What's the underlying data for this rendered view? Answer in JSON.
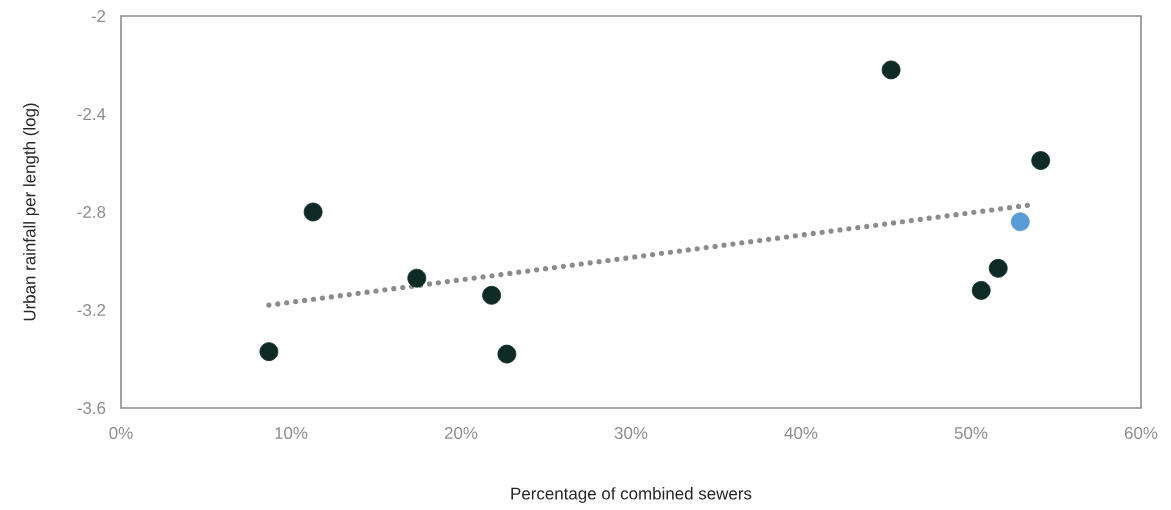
{
  "chart_data": {
    "type": "scatter",
    "xlabel": "Percentage of combined sewers",
    "ylabel": "Urban rainfall per length (log)",
    "marker": "circle",
    "xlim": [
      0,
      60
    ],
    "xticks": [
      {
        "value": 0,
        "label": "0%"
      },
      {
        "value": 10,
        "label": "10%"
      },
      {
        "value": 20,
        "label": "20%"
      },
      {
        "value": 30,
        "label": "30%"
      },
      {
        "value": 40,
        "label": "40%"
      },
      {
        "value": 50,
        "label": "50%"
      },
      {
        "value": 60,
        "label": "60%"
      }
    ],
    "ylim": [
      -3.6,
      -2
    ],
    "yticks": [
      -3.6,
      -3.2,
      -2.8,
      -2.4,
      -2
    ],
    "series": [
      {
        "x": [
          8.7,
          11.3,
          17.4,
          21.8,
          22.7,
          45.3,
          50.6,
          51.6,
          54.1,
          52.9
        ],
        "values": [
          -3.37,
          -2.8,
          -3.07,
          -3.14,
          -3.38,
          -2.22,
          -3.12,
          -3.03,
          -2.59,
          -2.84
        ],
        "colors": [
          "#0d2b24",
          "#0d2b24",
          "#0d2b24",
          "#0d2b24",
          "#0d2b24",
          "#0d2b24",
          "#0d2b24",
          "#0d2b24",
          "#0d2b24",
          "#5b9bd5"
        ]
      },
      {
        "type": "line",
        "x": [
          8.7,
          53.6
        ],
        "values": [
          -3.18,
          -2.77
        ],
        "color": "#8c8c8c",
        "line_style": "dotted",
        "marker": "none"
      }
    ]
  }
}
